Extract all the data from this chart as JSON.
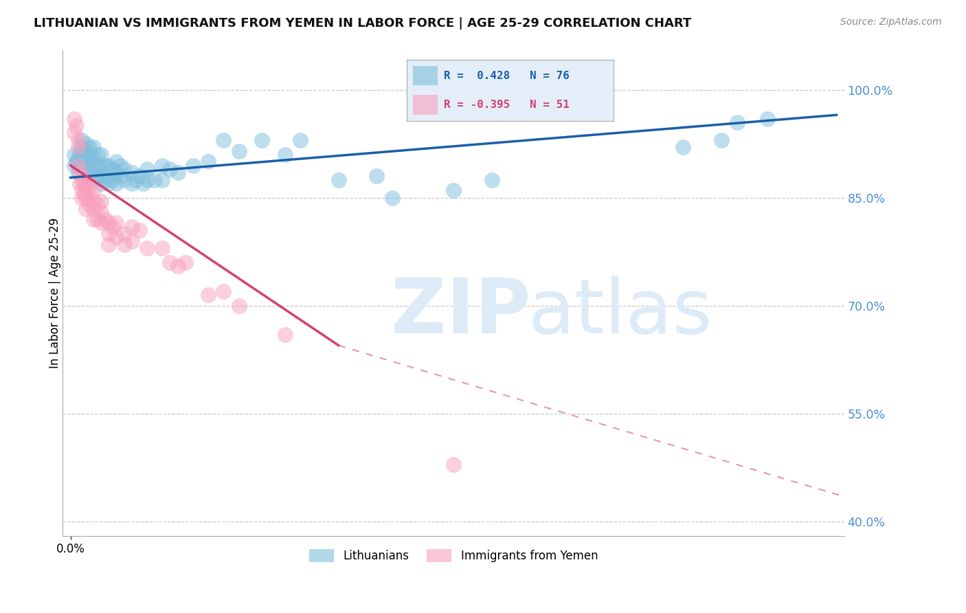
{
  "title": "LITHUANIAN VS IMMIGRANTS FROM YEMEN IN LABOR FORCE | AGE 25-29 CORRELATION CHART",
  "source": "Source: ZipAtlas.com",
  "ylabel": "In Labor Force | Age 25-29",
  "right_yticks": [
    0.4,
    0.55,
    0.7,
    0.85,
    1.0
  ],
  "right_yticklabels": [
    "40.0%",
    "55.0%",
    "70.0%",
    "85.0%",
    "100.0%"
  ],
  "xlim": [
    -0.01,
    1.01
  ],
  "ylim": [
    0.38,
    1.055
  ],
  "blue_color": "#7fbfdd",
  "pink_color": "#f8a0bc",
  "blue_line_color": "#1a5fa8",
  "pink_line_color": "#d44070",
  "background_color": "#ffffff",
  "grid_color": "#c8c8c8",
  "watermark_color": "#ddeaf7",
  "right_axis_color": "#4a8fd4",
  "legend_box_color": "#e4eef8",
  "blue_R": 0.428,
  "blue_N": 76,
  "pink_R": -0.395,
  "pink_N": 51,
  "blue_line_x0": 0.0,
  "blue_line_y0": 0.878,
  "blue_line_x1": 1.0,
  "blue_line_y1": 0.965,
  "pink_line_x0": 0.0,
  "pink_line_y0": 0.895,
  "pink_line_x1_solid": 0.35,
  "pink_line_y1_solid": 0.645,
  "pink_line_x1_dash": 1.01,
  "pink_line_y1_dash": 0.435,
  "blue_scatter_x": [
    0.005,
    0.005,
    0.008,
    0.01,
    0.01,
    0.01,
    0.012,
    0.012,
    0.013,
    0.015,
    0.015,
    0.015,
    0.015,
    0.02,
    0.02,
    0.02,
    0.02,
    0.02,
    0.025,
    0.025,
    0.025,
    0.025,
    0.03,
    0.03,
    0.03,
    0.03,
    0.03,
    0.035,
    0.035,
    0.035,
    0.04,
    0.04,
    0.04,
    0.04,
    0.045,
    0.045,
    0.05,
    0.05,
    0.05,
    0.055,
    0.055,
    0.06,
    0.06,
    0.06,
    0.065,
    0.065,
    0.07,
    0.07,
    0.08,
    0.08,
    0.085,
    0.09,
    0.095,
    0.1,
    0.1,
    0.11,
    0.12,
    0.12,
    0.13,
    0.14,
    0.16,
    0.18,
    0.2,
    0.22,
    0.25,
    0.28,
    0.3,
    0.35,
    0.4,
    0.42,
    0.5,
    0.55,
    0.8,
    0.85,
    0.87,
    0.91
  ],
  "blue_scatter_y": [
    0.895,
    0.91,
    0.9,
    0.885,
    0.895,
    0.905,
    0.9,
    0.91,
    0.895,
    0.905,
    0.915,
    0.92,
    0.93,
    0.88,
    0.895,
    0.905,
    0.91,
    0.925,
    0.89,
    0.9,
    0.91,
    0.92,
    0.875,
    0.885,
    0.895,
    0.905,
    0.92,
    0.88,
    0.895,
    0.91,
    0.87,
    0.88,
    0.895,
    0.91,
    0.875,
    0.895,
    0.87,
    0.88,
    0.895,
    0.875,
    0.89,
    0.87,
    0.885,
    0.9,
    0.88,
    0.895,
    0.875,
    0.89,
    0.87,
    0.885,
    0.875,
    0.88,
    0.87,
    0.875,
    0.89,
    0.875,
    0.875,
    0.895,
    0.89,
    0.885,
    0.895,
    0.9,
    0.93,
    0.915,
    0.93,
    0.91,
    0.93,
    0.875,
    0.88,
    0.85,
    0.86,
    0.875,
    0.92,
    0.93,
    0.955,
    0.96
  ],
  "pink_scatter_x": [
    0.005,
    0.005,
    0.008,
    0.01,
    0.01,
    0.01,
    0.012,
    0.012,
    0.015,
    0.015,
    0.015,
    0.018,
    0.018,
    0.02,
    0.02,
    0.02,
    0.02,
    0.025,
    0.025,
    0.025,
    0.03,
    0.03,
    0.03,
    0.03,
    0.035,
    0.035,
    0.04,
    0.04,
    0.04,
    0.045,
    0.05,
    0.05,
    0.05,
    0.055,
    0.06,
    0.06,
    0.07,
    0.07,
    0.08,
    0.08,
    0.09,
    0.1,
    0.12,
    0.13,
    0.14,
    0.15,
    0.18,
    0.2,
    0.22,
    0.28,
    0.5
  ],
  "pink_scatter_y": [
    0.96,
    0.94,
    0.95,
    0.93,
    0.92,
    0.895,
    0.885,
    0.87,
    0.875,
    0.86,
    0.85,
    0.87,
    0.855,
    0.875,
    0.86,
    0.85,
    0.835,
    0.87,
    0.855,
    0.84,
    0.86,
    0.845,
    0.835,
    0.82,
    0.84,
    0.82,
    0.845,
    0.83,
    0.815,
    0.82,
    0.815,
    0.8,
    0.785,
    0.81,
    0.815,
    0.795,
    0.8,
    0.785,
    0.81,
    0.79,
    0.805,
    0.78,
    0.78,
    0.76,
    0.755,
    0.76,
    0.715,
    0.72,
    0.7,
    0.66,
    0.48
  ]
}
